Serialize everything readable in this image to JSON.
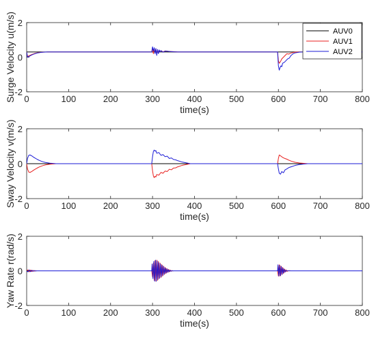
{
  "chart_data": [
    {
      "type": "line",
      "xlabel": "time(s)",
      "ylabel": "Surge Velocity u(m/s)",
      "xlim": [
        0,
        800
      ],
      "ylim": [
        -2,
        2
      ],
      "xticks": [
        0,
        100,
        200,
        300,
        400,
        500,
        600,
        700,
        800
      ],
      "yticks": [
        -2,
        0,
        2
      ],
      "legend": {
        "position": "top-right",
        "entries": [
          {
            "label": "AUV0",
            "color": "#000000"
          },
          {
            "label": "AUV1",
            "color": "#e8201f"
          },
          {
            "label": "AUV2",
            "color": "#1a1ad6"
          }
        ]
      },
      "series": [
        {
          "color": "#000000",
          "x": [
            0,
            2,
            5,
            10,
            15,
            20,
            25,
            30,
            35,
            40,
            50,
            60,
            800
          ],
          "y": [
            0.3,
            0.3,
            0.3,
            0.3,
            0.3,
            0.3,
            0.3,
            0.3,
            0.3,
            0.3,
            0.3,
            0.3,
            0.3
          ]
        },
        {
          "color": "#e8201f",
          "x": [
            0,
            2,
            5,
            10,
            15,
            20,
            25,
            30,
            35,
            40,
            50,
            298,
            300,
            302,
            304,
            306,
            308,
            310,
            312,
            314,
            316,
            318,
            320,
            325,
            330,
            340,
            350,
            360,
            598,
            600,
            602,
            605,
            608,
            612,
            616,
            620,
            625,
            630,
            635,
            640,
            650,
            660,
            800
          ],
          "y": [
            0.3,
            0.05,
            0.07,
            0.13,
            0.18,
            0.22,
            0.25,
            0.27,
            0.28,
            0.29,
            0.3,
            0.3,
            0.52,
            0.2,
            0.48,
            0.25,
            0.5,
            0.15,
            0.42,
            0.26,
            0.4,
            0.3,
            0.38,
            0.31,
            0.36,
            0.33,
            0.32,
            0.3,
            0.3,
            -0.2,
            -0.35,
            -0.25,
            -0.1,
            0.0,
            0.1,
            0.2,
            0.18,
            0.24,
            0.27,
            0.29,
            0.3,
            0.3,
            0.3
          ]
        },
        {
          "color": "#1a1ad6",
          "x": [
            0,
            2,
            5,
            10,
            15,
            20,
            25,
            30,
            35,
            40,
            50,
            298,
            300,
            302,
            304,
            306,
            308,
            310,
            312,
            314,
            316,
            318,
            320,
            325,
            330,
            340,
            350,
            360,
            598,
            600,
            602,
            604,
            606,
            608,
            610,
            614,
            618,
            622,
            626,
            630,
            635,
            640,
            650,
            660,
            800
          ],
          "y": [
            0.3,
            0.0,
            0.03,
            0.1,
            0.16,
            0.2,
            0.24,
            0.26,
            0.28,
            0.29,
            0.3,
            0.3,
            0.6,
            0.35,
            0.55,
            0.2,
            0.5,
            0.1,
            0.45,
            0.2,
            0.42,
            0.3,
            0.38,
            0.29,
            0.35,
            0.33,
            0.31,
            0.3,
            0.3,
            -0.5,
            -0.75,
            -0.6,
            -0.5,
            -0.55,
            -0.35,
            -0.3,
            -0.2,
            -0.1,
            -0.05,
            0.1,
            0.2,
            0.25,
            0.29,
            0.3,
            0.3
          ]
        }
      ]
    },
    {
      "type": "line",
      "xlabel": "time(s)",
      "ylabel": "Sway Velocity v(m/s)",
      "xlim": [
        0,
        800
      ],
      "ylim": [
        -2,
        2
      ],
      "xticks": [
        0,
        100,
        200,
        300,
        400,
        500,
        600,
        700,
        800
      ],
      "yticks": [
        -2,
        0,
        2
      ],
      "series": [
        {
          "color": "#000000",
          "x": [
            0,
            800
          ],
          "y": [
            0,
            0
          ]
        },
        {
          "color": "#e8201f",
          "x": [
            0,
            2,
            5,
            8,
            12,
            16,
            20,
            25,
            30,
            35,
            40,
            45,
            50,
            55,
            60,
            65,
            70,
            298,
            300,
            302,
            304,
            306,
            308,
            310,
            315,
            320,
            325,
            330,
            335,
            340,
            345,
            350,
            355,
            360,
            370,
            380,
            390,
            598,
            600,
            602,
            605,
            610,
            615,
            620,
            625,
            630,
            640,
            650,
            660,
            670,
            800
          ],
          "y": [
            0,
            -0.3,
            -0.48,
            -0.5,
            -0.45,
            -0.38,
            -0.32,
            -0.25,
            -0.19,
            -0.14,
            -0.1,
            -0.07,
            -0.05,
            -0.03,
            -0.02,
            -0.01,
            0,
            0,
            -0.4,
            -0.7,
            -0.8,
            -0.72,
            -0.76,
            -0.62,
            -0.66,
            -0.5,
            -0.55,
            -0.42,
            -0.45,
            -0.32,
            -0.35,
            -0.25,
            -0.24,
            -0.18,
            -0.1,
            -0.05,
            0,
            0,
            0.3,
            0.5,
            0.45,
            0.36,
            0.3,
            0.26,
            0.2,
            0.15,
            0.08,
            0.04,
            0.02,
            0,
            0
          ]
        },
        {
          "color": "#1a1ad6",
          "x": [
            0,
            2,
            5,
            8,
            12,
            16,
            20,
            25,
            30,
            35,
            40,
            45,
            50,
            55,
            60,
            65,
            70,
            298,
            300,
            302,
            304,
            306,
            308,
            310,
            315,
            320,
            325,
            330,
            335,
            340,
            345,
            350,
            355,
            360,
            370,
            380,
            390,
            598,
            600,
            602,
            605,
            608,
            612,
            616,
            620,
            625,
            630,
            640,
            650,
            660,
            670,
            800
          ],
          "y": [
            0,
            0.3,
            0.48,
            0.5,
            0.45,
            0.38,
            0.32,
            0.25,
            0.19,
            0.14,
            0.1,
            0.07,
            0.05,
            0.03,
            0.02,
            0.01,
            0,
            0,
            0.4,
            0.7,
            0.78,
            0.72,
            0.75,
            0.6,
            0.64,
            0.48,
            0.52,
            0.4,
            0.43,
            0.3,
            0.33,
            0.24,
            0.22,
            0.17,
            0.1,
            0.05,
            0,
            0,
            -0.3,
            -0.55,
            -0.6,
            -0.45,
            -0.52,
            -0.35,
            -0.3,
            -0.22,
            -0.18,
            -0.1,
            -0.05,
            -0.02,
            0,
            0
          ]
        }
      ]
    },
    {
      "type": "line",
      "xlabel": "time(s)",
      "ylabel": "Yaw Rate r(rad/s)",
      "xlim": [
        0,
        800
      ],
      "ylim": [
        -2,
        2
      ],
      "xticks": [
        0,
        100,
        200,
        300,
        400,
        500,
        600,
        700,
        800
      ],
      "yticks": [
        -2,
        0,
        2
      ],
      "series": [
        {
          "color": "#000000",
          "x": [
            0,
            800
          ],
          "y": [
            0,
            0
          ]
        },
        {
          "color": "#e8201f",
          "x": [
            0,
            3,
            6,
            9,
            12,
            15,
            18,
            21,
            24,
            30,
            298,
            300,
            302,
            304,
            306,
            308,
            310,
            312,
            314,
            316,
            318,
            320,
            322,
            324,
            326,
            328,
            330,
            332,
            334,
            336,
            338,
            340,
            342,
            344,
            346,
            348,
            350,
            355,
            360,
            598,
            600,
            602,
            604,
            606,
            608,
            610,
            612,
            614,
            616,
            618,
            620,
            625,
            630,
            800
          ],
          "y": [
            0,
            0.06,
            -0.06,
            0.05,
            -0.04,
            0.03,
            -0.02,
            0.01,
            0,
            0,
            0,
            -0.35,
            0.45,
            -0.55,
            0.6,
            -0.6,
            0.62,
            -0.55,
            0.55,
            -0.45,
            0.45,
            -0.38,
            0.36,
            -0.3,
            0.28,
            -0.22,
            0.2,
            -0.15,
            0.14,
            -0.1,
            0.09,
            -0.06,
            0.05,
            -0.03,
            0.02,
            -0.01,
            0,
            0,
            0,
            0,
            -0.3,
            0.35,
            -0.3,
            0.28,
            -0.22,
            0.2,
            -0.15,
            0.12,
            -0.08,
            0.06,
            -0.03,
            0.01,
            0,
            0
          ]
        },
        {
          "color": "#1a1ad6",
          "x": [
            0,
            3,
            6,
            9,
            12,
            15,
            18,
            21,
            24,
            30,
            298,
            299,
            301,
            303,
            305,
            307,
            309,
            311,
            313,
            315,
            317,
            319,
            321,
            323,
            325,
            327,
            329,
            331,
            333,
            335,
            337,
            339,
            341,
            343,
            345,
            347,
            349,
            354,
            360,
            598,
            599,
            601,
            603,
            605,
            607,
            609,
            611,
            613,
            615,
            617,
            619,
            624,
            630,
            800
          ],
          "y": [
            0,
            -0.06,
            0.06,
            -0.05,
            0.04,
            -0.03,
            0.02,
            -0.01,
            0,
            0,
            0,
            0.4,
            -0.45,
            0.55,
            -0.6,
            0.62,
            -0.6,
            0.58,
            -0.5,
            0.48,
            -0.42,
            0.4,
            -0.34,
            0.32,
            -0.26,
            0.24,
            -0.18,
            0.16,
            -0.12,
            0.11,
            -0.08,
            0.06,
            -0.04,
            0.03,
            -0.02,
            0.01,
            0,
            0,
            0,
            0,
            0.35,
            -0.3,
            0.32,
            -0.28,
            0.25,
            -0.2,
            0.16,
            -0.12,
            0.08,
            -0.05,
            0.02,
            0,
            0,
            0
          ]
        }
      ]
    }
  ]
}
